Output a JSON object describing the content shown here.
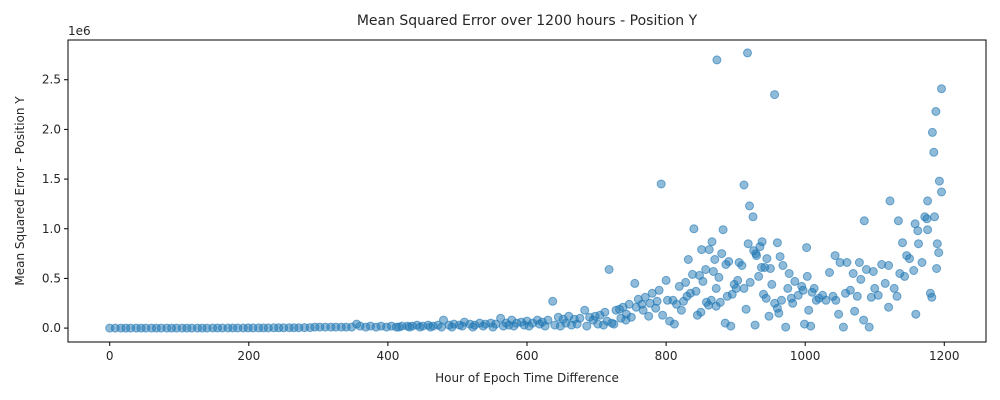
{
  "chart_data": {
    "type": "scatter",
    "title": "Mean Squared Error over 1200 hours - Position Y",
    "xlabel": "Hour of Epoch Time Difference",
    "ylabel": "Mean Squared Error - Position Y",
    "y_offset_text": "1e6",
    "xlim": [
      -60,
      1260
    ],
    "ylim": [
      -0.14,
      2.9
    ],
    "x_ticks": [
      0,
      200,
      400,
      600,
      800,
      1000,
      1200
    ],
    "x_tick_labels": [
      "0",
      "200",
      "400",
      "600",
      "800",
      "1000",
      "1200"
    ],
    "y_ticks": [
      0.0,
      0.5,
      1.0,
      1.5,
      2.0,
      2.5
    ],
    "y_tick_labels": [
      "0.0",
      "0.5",
      "1.0",
      "1.5",
      "2.0",
      "2.5"
    ],
    "y_units_multiplier": 1000000,
    "grid": false,
    "legend": "none",
    "point_color": "#1f77b4",
    "series": [
      {
        "points": [
          [
            873,
            2.7
          ],
          [
            917,
            2.77
          ],
          [
            956,
            2.35
          ],
          [
            1196,
            2.41
          ],
          [
            1188,
            2.18
          ],
          [
            1183,
            1.97
          ],
          [
            1185,
            1.77
          ],
          [
            793,
            1.45
          ],
          [
            912,
            1.44
          ],
          [
            1193,
            1.48
          ],
          [
            1196,
            1.37
          ],
          [
            1176,
            1.28
          ],
          [
            1122,
            1.28
          ],
          [
            920,
            1.23
          ],
          [
            925,
            1.12
          ],
          [
            1172,
            1.12
          ],
          [
            1186,
            1.12
          ],
          [
            1134,
            1.08
          ],
          [
            1085,
            1.08
          ],
          [
            1175,
            1.1
          ],
          [
            1158,
            1.05
          ],
          [
            840,
            1.0
          ],
          [
            882,
            0.99
          ],
          [
            1162,
            0.98
          ],
          [
            1176,
            0.99
          ],
          [
            1190,
            0.85
          ],
          [
            1192,
            0.76
          ],
          [
            1189,
            0.6
          ],
          [
            866,
            0.87
          ],
          [
            938,
            0.87
          ],
          [
            960,
            0.86
          ],
          [
            935,
            0.82
          ],
          [
            880,
            0.75
          ],
          [
            1002,
            0.81
          ],
          [
            1043,
            0.73
          ],
          [
            918,
            0.85
          ],
          [
            851,
            0.79
          ],
          [
            862,
            0.79
          ],
          [
            832,
            0.69
          ],
          [
            870,
            0.69
          ],
          [
            890,
            0.67
          ],
          [
            905,
            0.66
          ],
          [
            964,
            0.72
          ],
          [
            929,
            0.75
          ],
          [
            945,
            0.7
          ],
          [
            1060,
            0.66
          ],
          [
            1078,
            0.66
          ],
          [
            1120,
            0.63
          ],
          [
            1146,
            0.73
          ],
          [
            1150,
            0.7
          ],
          [
            1163,
            0.85
          ],
          [
            1140,
            0.86
          ],
          [
            1136,
            0.55
          ],
          [
            1168,
            0.66
          ],
          [
            1180,
            0.35
          ],
          [
            1182,
            0.31
          ],
          [
            1156,
            0.58
          ],
          [
            1110,
            0.64
          ],
          [
            1098,
            0.57
          ],
          [
            1088,
            0.59
          ],
          [
            1069,
            0.55
          ],
          [
            1050,
            0.66
          ],
          [
            1035,
            0.56
          ],
          [
            1025,
            0.33
          ],
          [
            1016,
            0.28
          ],
          [
            1010,
            0.36
          ],
          [
            1003,
            0.52
          ],
          [
            995,
            0.42
          ],
          [
            985,
            0.47
          ],
          [
            975,
            0.4
          ],
          [
            968,
            0.63
          ],
          [
            950,
            0.6
          ],
          [
            940,
            0.34
          ],
          [
            933,
            0.52
          ],
          [
            921,
            0.46
          ],
          [
            909,
            0.63
          ],
          [
            898,
            0.44
          ],
          [
            886,
            0.64
          ],
          [
            876,
            0.51
          ],
          [
            868,
            0.57
          ],
          [
            857,
            0.59
          ],
          [
            848,
            0.53
          ],
          [
            838,
            0.54
          ],
          [
            828,
            0.46
          ],
          [
            819,
            0.42
          ],
          [
            810,
            0.28
          ],
          [
            800,
            0.48
          ],
          [
            790,
            0.38
          ],
          [
            780,
            0.35
          ],
          [
            770,
            0.31
          ],
          [
            760,
            0.29
          ],
          [
            755,
            0.45
          ],
          [
            747,
            0.24
          ],
          [
            738,
            0.21
          ],
          [
            728,
            0.18
          ],
          [
            718,
            0.59
          ],
          [
            712,
            0.16
          ],
          [
            705,
            0.13
          ],
          [
            698,
            0.12
          ],
          [
            690,
            0.11
          ],
          [
            683,
            0.18
          ],
          [
            676,
            0.1
          ],
          [
            668,
            0.09
          ],
          [
            660,
            0.12
          ],
          [
            652,
            0.09
          ],
          [
            645,
            0.11
          ],
          [
            637,
            0.27
          ],
          [
            630,
            0.08
          ],
          [
            622,
            0.06
          ],
          [
            615,
            0.08
          ],
          [
            608,
            0.05
          ],
          [
            600,
            0.07
          ],
          [
            592,
            0.06
          ],
          [
            585,
            0.05
          ],
          [
            578,
            0.08
          ],
          [
            570,
            0.05
          ],
          [
            562,
            0.1
          ],
          [
            555,
            0.04
          ],
          [
            548,
            0.05
          ],
          [
            540,
            0.04
          ],
          [
            532,
            0.05
          ],
          [
            525,
            0.03
          ],
          [
            518,
            0.04
          ],
          [
            510,
            0.06
          ],
          [
            503,
            0.03
          ],
          [
            495,
            0.04
          ],
          [
            488,
            0.03
          ],
          [
            480,
            0.08
          ],
          [
            472,
            0.03
          ],
          [
            465,
            0.02
          ],
          [
            458,
            0.03
          ],
          [
            450,
            0.02
          ],
          [
            442,
            0.03
          ],
          [
            435,
            0.02
          ],
          [
            428,
            0.02
          ],
          [
            420,
            0.02
          ],
          [
            412,
            0.01
          ],
          [
            405,
            0.02
          ],
          [
            398,
            0.01
          ],
          [
            390,
            0.02
          ],
          [
            383,
            0.01
          ],
          [
            375,
            0.02
          ],
          [
            368,
            0.01
          ],
          [
            360,
            0.02
          ],
          [
            355,
            0.04
          ],
          [
            348,
            0.01
          ],
          [
            340,
            0.01
          ],
          [
            333,
            0.01
          ],
          [
            325,
            0.01
          ],
          [
            318,
            0.01
          ],
          [
            310,
            0.01
          ],
          [
            302,
            0.01
          ],
          [
            295,
            0.01
          ],
          [
            288,
            0.005
          ],
          [
            280,
            0.005
          ],
          [
            272,
            0.004
          ],
          [
            265,
            0.004
          ],
          [
            258,
            0.004
          ],
          [
            250,
            0.003
          ],
          [
            243,
            0.003
          ],
          [
            236,
            0.003
          ],
          [
            228,
            0.002
          ],
          [
            221,
            0.002
          ],
          [
            214,
            0.002
          ],
          [
            206,
            0.002
          ],
          [
            199,
            0.002
          ],
          [
            192,
            0.001
          ],
          [
            184,
            0.001
          ],
          [
            177,
            0.001
          ],
          [
            170,
            0.001
          ],
          [
            162,
            0.001
          ],
          [
            155,
            0.001
          ],
          [
            148,
            0.001
          ],
          [
            140,
            0.0
          ],
          [
            133,
            0.0
          ],
          [
            126,
            0.0
          ],
          [
            118,
            0.0
          ],
          [
            111,
            0.0
          ],
          [
            104,
            0.0
          ],
          [
            96,
            0.0
          ],
          [
            89,
            0.0
          ],
          [
            82,
            0.0
          ],
          [
            74,
            0.0
          ],
          [
            67,
            0.0
          ],
          [
            60,
            0.0
          ],
          [
            52,
            0.0
          ],
          [
            45,
            0.0
          ],
          [
            38,
            0.0
          ],
          [
            30,
            0.0
          ],
          [
            23,
            0.0
          ],
          [
            16,
            0.0
          ],
          [
            8,
            0.0
          ],
          [
            0,
            0.0
          ],
          [
            845,
            0.13
          ],
          [
            858,
            0.26
          ],
          [
            872,
            0.22
          ],
          [
            885,
            0.05
          ],
          [
            893,
            0.02
          ],
          [
            915,
            0.19
          ],
          [
            928,
            0.03
          ],
          [
            948,
            0.12
          ],
          [
            962,
            0.15
          ],
          [
            972,
            0.01
          ],
          [
            999,
            0.04
          ],
          [
            1008,
            0.02
          ],
          [
            1055,
            0.01
          ],
          [
            1071,
            0.17
          ],
          [
            1084,
            0.08
          ],
          [
            1092,
            0.01
          ],
          [
            1120,
            0.21
          ],
          [
            1159,
            0.14
          ],
          [
            1048,
            0.14
          ],
          [
            1030,
            0.28
          ],
          [
            1020,
            0.3
          ],
          [
            990,
            0.33
          ],
          [
            980,
            0.3
          ],
          [
            960,
            0.2
          ],
          [
            952,
            0.44
          ],
          [
            942,
            0.61
          ],
          [
            930,
            0.73
          ],
          [
            901,
            0.4
          ],
          [
            895,
            0.34
          ],
          [
            878,
            0.26
          ],
          [
            865,
            0.28
          ],
          [
            850,
            0.16
          ],
          [
            835,
            0.35
          ],
          [
            825,
            0.27
          ],
          [
            815,
            0.24
          ],
          [
            805,
            0.07
          ],
          [
            795,
            0.13
          ],
          [
            785,
            0.2
          ],
          [
            775,
            0.12
          ],
          [
            765,
            0.24
          ],
          [
            750,
            0.11
          ],
          [
            742,
            0.08
          ],
          [
            733,
            0.19
          ],
          [
            725,
            0.04
          ],
          [
            715,
            0.07
          ],
          [
            702,
            0.04
          ],
          [
            695,
            0.08
          ],
          [
            686,
            0.02
          ],
          [
            672,
            0.04
          ],
          [
            664,
            0.03
          ],
          [
            656,
            0.05
          ],
          [
            648,
            0.02
          ],
          [
            640,
            0.03
          ],
          [
            626,
            0.02
          ],
          [
            618,
            0.04
          ],
          [
            603,
            0.02
          ],
          [
            596,
            0.03
          ],
          [
            581,
            0.02
          ],
          [
            574,
            0.03
          ],
          [
            566,
            0.02
          ],
          [
            551,
            0.01
          ],
          [
            537,
            0.02
          ],
          [
            522,
            0.01
          ],
          [
            507,
            0.02
          ],
          [
            492,
            0.01
          ],
          [
            477,
            0.01
          ],
          [
            461,
            0.01
          ],
          [
            446,
            0.01
          ],
          [
            431,
            0.01
          ],
          [
            416,
            0.01
          ],
          [
            1105,
            0.33
          ],
          [
            1115,
            0.45
          ],
          [
            1128,
            0.4
          ],
          [
            1132,
            0.32
          ],
          [
            1143,
            0.52
          ],
          [
            1100,
            0.4
          ],
          [
            1095,
            0.31
          ],
          [
            1080,
            0.49
          ],
          [
            1075,
            0.32
          ],
          [
            1065,
            0.38
          ],
          [
            1058,
            0.35
          ],
          [
            1040,
            0.32
          ],
          [
            1044,
            0.28
          ],
          [
            1013,
            0.4
          ],
          [
            1005,
            0.18
          ],
          [
            997,
            0.38
          ],
          [
            982,
            0.25
          ],
          [
            977,
            0.55
          ],
          [
            966,
            0.28
          ],
          [
            956,
            0.25
          ],
          [
            944,
            0.3
          ],
          [
            937,
            0.61
          ],
          [
            926,
            0.78
          ],
          [
            912,
            0.4
          ],
          [
            903,
            0.48
          ],
          [
            888,
            0.32
          ],
          [
            872,
            0.4
          ],
          [
            861,
            0.23
          ],
          [
            853,
            0.47
          ],
          [
            843,
            0.37
          ],
          [
            830,
            0.32
          ],
          [
            822,
            0.18
          ],
          [
            812,
            0.04
          ],
          [
            802,
            0.28
          ],
          [
            787,
            0.27
          ],
          [
            777,
            0.25
          ],
          [
            767,
            0.18
          ],
          [
            757,
            0.21
          ],
          [
            743,
            0.14
          ],
          [
            735,
            0.1
          ],
          [
            722,
            0.05
          ],
          [
            710,
            0.03
          ]
        ]
      }
    ]
  }
}
